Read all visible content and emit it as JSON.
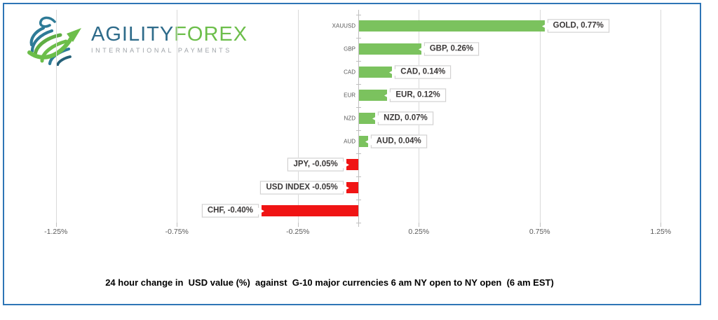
{
  "logo": {
    "brand_primary": "AGILITY",
    "brand_secondary": "FOREX",
    "tagline": "INTERNATIONAL PAYMENTS"
  },
  "caption": "24 hour change in  USD value (%)  against  G-10 major currencies 6 am NY open to NY open  (6 am EST)",
  "colors": {
    "positive_bar": "#7BC25E",
    "negative_bar": "#F01414",
    "frame_border": "#2E75B6",
    "gridline": "#D9D9D9",
    "axis_line": "#BFBFBF",
    "tick_text": "#595959",
    "callout_text": "#3B3838",
    "callout_border": "#D2D0D0",
    "logo_teal": "#2E6B8A",
    "logo_green": "#6CBE4A",
    "logo_gray": "#9EA3A8"
  },
  "chart_data": {
    "type": "bar",
    "orientation": "horizontal",
    "title": "",
    "categories": [
      "XAUUSD",
      "GBP",
      "CAD",
      "EUR",
      "NZD",
      "AUD",
      "JPY",
      "USD INDEX",
      "CHF"
    ],
    "values": [
      0.77,
      0.26,
      0.14,
      0.12,
      0.07,
      0.04,
      -0.05,
      -0.05,
      -0.4
    ],
    "data_labels": [
      "GOLD, 0.77%",
      "GBP, 0.26%",
      "CAD, 0.14%",
      "EUR, 0.12%",
      "NZD, 0.07%",
      "AUD, 0.04%",
      "JPY, -0.05%",
      "USD INDEX -0.05%",
      "CHF, -0.40%"
    ],
    "category_axis_label_visible": [
      true,
      true,
      true,
      true,
      true,
      true,
      false,
      false,
      false
    ],
    "x_ticks": [
      {
        "label": "-1.25%",
        "value": -1.25
      },
      {
        "label": "-0.75%",
        "value": -0.75
      },
      {
        "label": "-0.25%",
        "value": -0.25
      },
      {
        "label": "0.25%",
        "value": 0.25
      },
      {
        "label": "0.75%",
        "value": 0.75
      },
      {
        "label": "1.25%",
        "value": 1.25
      }
    ],
    "xlim": [
      -1.45,
      1.45
    ],
    "grid": "vertical",
    "legend": "none",
    "value_unit": "%"
  }
}
